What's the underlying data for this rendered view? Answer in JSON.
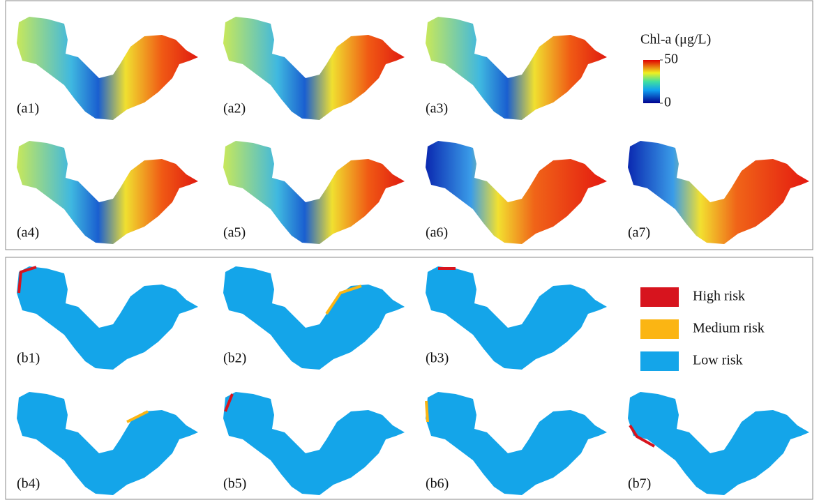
{
  "top_panels": [
    "(a1)",
    "(a2)",
    "(a3)",
    "(a4)",
    "(a5)",
    "(a6)",
    "(a7)"
  ],
  "colorbar": {
    "title": "Chl-a (μg/L)",
    "ticks": [
      50,
      0
    ]
  },
  "bottom_panels": [
    "(b1)",
    "(b2)",
    "(b3)",
    "(b4)",
    "(b5)",
    "(b6)",
    "(b7)"
  ],
  "risk_legend": [
    {
      "label": "High risk",
      "color": "#d7141e"
    },
    {
      "label": "Medium risk",
      "color": "#fbb513"
    },
    {
      "label": "Low risk",
      "color": "#14a5e9"
    }
  ]
}
